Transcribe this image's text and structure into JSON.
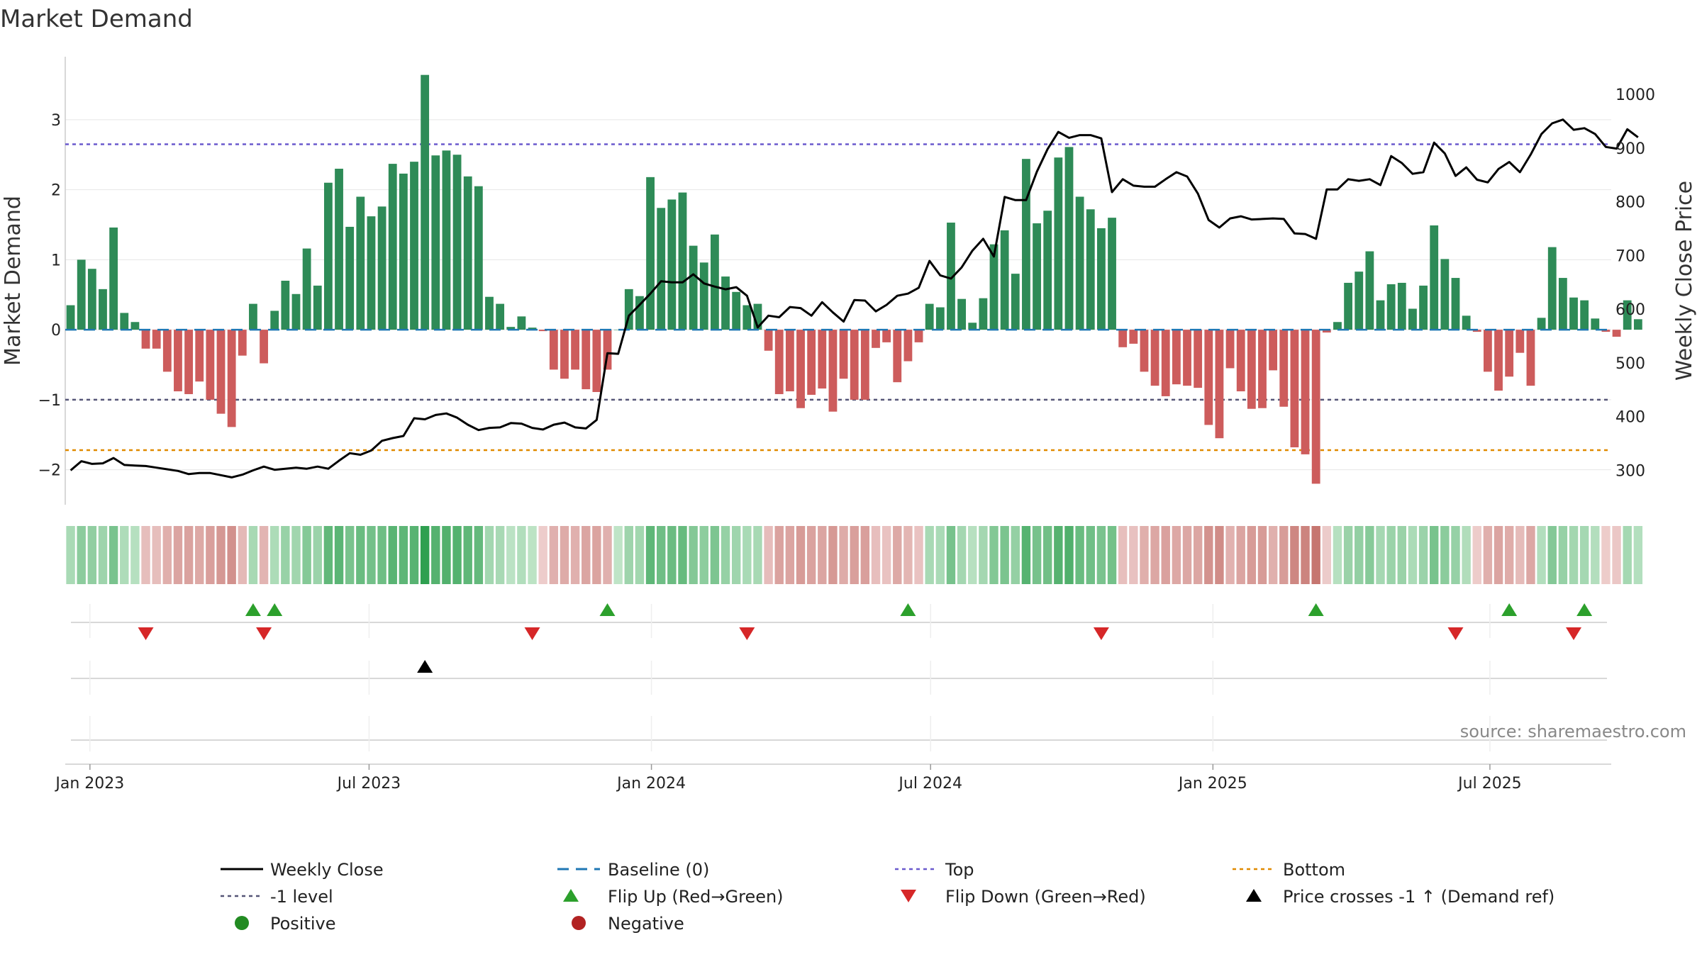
{
  "chart_data": {
    "type": "bar",
    "title": "Market Demand",
    "ylabel": "Market Demand",
    "y2label": "Weekly Close Price",
    "ylim": [
      -2.5,
      3.9
    ],
    "y2lim": [
      236,
      1070
    ],
    "yticks": [
      -2,
      -1,
      0,
      1,
      2,
      3
    ],
    "y2ticks": [
      300,
      400,
      500,
      600,
      700,
      800,
      900,
      1000
    ],
    "xrange": [
      0,
      144
    ],
    "xticks": [
      {
        "label": "Jan 2023",
        "week": 2.3
      },
      {
        "label": "Jul 2023",
        "week": 28.3
      },
      {
        "label": "Jan 2024",
        "week": 54.6
      },
      {
        "label": "Jul 2024",
        "week": 80.6
      },
      {
        "label": "Jan 2025",
        "week": 106.9
      },
      {
        "label": "Jul 2025",
        "week": 132.7
      }
    ],
    "reference_lines": {
      "top": 2.65,
      "bottom": -1.72,
      "minus_one": -1.0
    },
    "demand": [
      0.35,
      1.0,
      0.87,
      0.58,
      1.46,
      0.24,
      0.11,
      -0.27,
      -0.27,
      -0.6,
      -0.88,
      -0.92,
      -0.74,
      -1.0,
      -1.2,
      -1.39,
      -0.37,
      0.37,
      -0.48,
      0.27,
      0.7,
      0.51,
      1.16,
      0.63,
      2.1,
      2.3,
      1.47,
      1.9,
      1.62,
      1.76,
      2.37,
      2.23,
      2.4,
      3.64,
      2.49,
      2.56,
      2.5,
      2.19,
      2.05,
      0.47,
      0.37,
      0.04,
      0.19,
      0.03,
      -0.02,
      -0.57,
      -0.7,
      -0.57,
      -0.85,
      -0.89,
      -0.57,
      0.0,
      0.58,
      0.48,
      2.18,
      1.74,
      1.86,
      1.96,
      1.2,
      0.96,
      1.36,
      0.76,
      0.54,
      0.35,
      0.37,
      -0.3,
      -0.92,
      -0.88,
      -1.12,
      -0.93,
      -0.84,
      -1.17,
      -0.7,
      -1.0,
      -1.0,
      -0.26,
      -0.18,
      -0.75,
      -0.45,
      -0.18,
      0.37,
      0.32,
      1.53,
      0.44,
      0.1,
      0.45,
      1.22,
      1.42,
      0.8,
      2.44,
      1.52,
      1.7,
      2.46,
      2.61,
      1.9,
      1.72,
      1.45,
      1.6,
      -0.25,
      -0.2,
      -0.6,
      -0.8,
      -0.95,
      -0.78,
      -0.8,
      -0.83,
      -1.36,
      -1.55,
      -0.55,
      -0.88,
      -1.13,
      -1.12,
      -0.58,
      -1.1,
      -1.68,
      -1.78,
      -2.2,
      -0.04,
      0.11,
      0.67,
      0.83,
      1.12,
      0.42,
      0.65,
      0.67,
      0.3,
      0.63,
      1.49,
      1.01,
      0.74,
      0.2,
      -0.03,
      -0.6,
      -0.87,
      -0.67,
      -0.33,
      -0.8,
      0.17,
      1.18,
      0.74,
      0.46,
      0.42,
      0.16,
      -0.03,
      -0.1,
      0.42,
      0.15
    ],
    "price": [
      300,
      317,
      312,
      313,
      323,
      310,
      309,
      308,
      305,
      302,
      299,
      293,
      295,
      295,
      291,
      287,
      292,
      300,
      307,
      301,
      303,
      305,
      303,
      307,
      303,
      318,
      332,
      329,
      337,
      355,
      360,
      364,
      397,
      395,
      403,
      406,
      398,
      385,
      375,
      379,
      380,
      388,
      387,
      379,
      376,
      385,
      389,
      380,
      378,
      394,
      518,
      517,
      588,
      608,
      629,
      652,
      650,
      650,
      665,
      648,
      642,
      637,
      641,
      625,
      566,
      588,
      585,
      604,
      602,
      588,
      613,
      594,
      577,
      617,
      616,
      596,
      608,
      625,
      629,
      640,
      690,
      663,
      657,
      678,
      709,
      731,
      698,
      809,
      803,
      803,
      856,
      898,
      930,
      919,
      924,
      924,
      918,
      818,
      842,
      830,
      828,
      828,
      842,
      855,
      847,
      815,
      766,
      752,
      769,
      773,
      767,
      768,
      769,
      768,
      741,
      740,
      731,
      823,
      823,
      842,
      839,
      842,
      831,
      885,
      872,
      852,
      855,
      910,
      890,
      848,
      864,
      841,
      836,
      861,
      874,
      855,
      888,
      926,
      946,
      953,
      934,
      937,
      926,
      902,
      899,
      935,
      920
    ],
    "flips_up_weeks": [
      17,
      19,
      50,
      78,
      116,
      134,
      141
    ],
    "flips_down_weeks": [
      7,
      18,
      43,
      63,
      96,
      129,
      140
    ],
    "price_cross_weeks": [
      33
    ],
    "series_colors": {
      "positive": "#2e8b57",
      "negative": "#cd5c5c",
      "price": "#000000",
      "baseline": "#1f77b4",
      "top": "#6a5acd",
      "minus_one": "#555577",
      "bottom": "#e08a00",
      "flip_up": "#2ca02c",
      "flip_down": "#d62728",
      "cross": "#000000"
    },
    "legend": [
      {
        "key": "weekly_close",
        "label": "Weekly Close"
      },
      {
        "key": "baseline",
        "label": "Baseline (0)"
      },
      {
        "key": "top",
        "label": "Top"
      },
      {
        "key": "bottom",
        "label": "Bottom"
      },
      {
        "key": "minus_one",
        "label": "-1 level"
      },
      {
        "key": "flip_up",
        "label": "Flip Up (Red→Green)"
      },
      {
        "key": "flip_down",
        "label": "Flip Down (Green→Red)"
      },
      {
        "key": "cross",
        "label": "Price crosses -1 ↑ (Demand ref)"
      },
      {
        "key": "positive",
        "label": "Positive"
      },
      {
        "key": "negative",
        "label": "Negative"
      }
    ],
    "source": "source: sharemaestro.com"
  }
}
